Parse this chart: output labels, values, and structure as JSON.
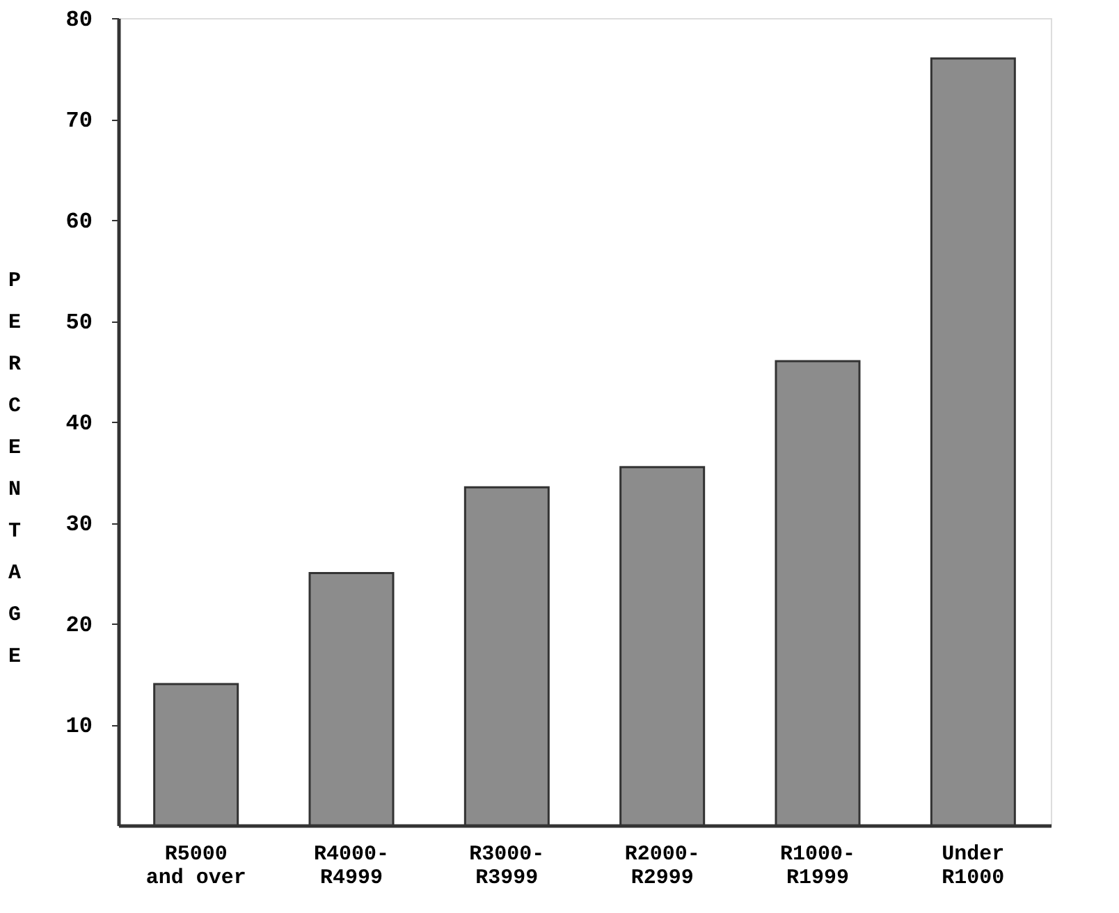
{
  "chart_data": {
    "type": "bar",
    "ylabel": "PERCENTAGE",
    "categories": [
      "R5000\nand over",
      "R4000-\nR4999",
      "R3000-\nR3999",
      "R2000-\nR2999",
      "R1000-\nR1999",
      "Under\nR1000"
    ],
    "values": [
      14,
      25,
      33.5,
      35.5,
      46,
      76
    ],
    "color": "#8c8c8c",
    "ylim": [
      0,
      80
    ],
    "yticks": [
      10,
      20,
      30,
      40,
      50,
      60,
      70,
      80
    ],
    "grid": false
  }
}
